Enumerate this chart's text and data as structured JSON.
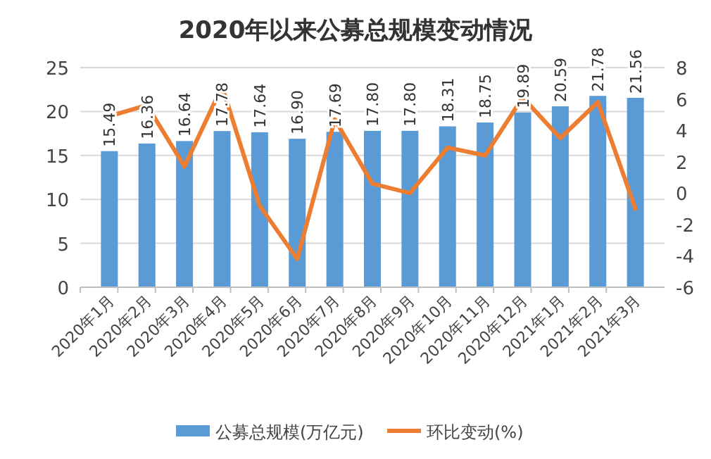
{
  "chart_data": {
    "type": "bar",
    "title": "2020年以来公募总规模变动情况",
    "categories": [
      "2020年1月",
      "2020年2月",
      "2020年3月",
      "2020年4月",
      "2020年5月",
      "2020年6月",
      "2020年7月",
      "2020年8月",
      "2020年9月",
      "2020年10月",
      "2020年11月",
      "2020年12月",
      "2021年1月",
      "2021年2月",
      "2021年3月"
    ],
    "series": [
      {
        "name": "公募总规模(万亿元)",
        "color": "#5b9bd5",
        "values": [
          15.49,
          16.36,
          16.64,
          17.78,
          17.64,
          16.9,
          17.69,
          17.8,
          17.8,
          18.31,
          18.75,
          19.89,
          20.59,
          21.78,
          21.56
        ],
        "value_labels": [
          "15.49",
          "16.36",
          "16.64",
          "17.78",
          "17.64",
          "16.90",
          "17.69",
          "17.80",
          "17.80",
          "18.31",
          "18.75",
          "19.89",
          "20.59",
          "21.78",
          "21.56"
        ]
      },
      {
        "name": "环比变动(%)",
        "color": "#ed7d31",
        "type": "line",
        "axis": "y2",
        "values": [
          4.9,
          5.6,
          1.7,
          6.8,
          -0.8,
          -4.2,
          4.7,
          0.6,
          0.0,
          2.9,
          2.4,
          6.1,
          3.5,
          5.8,
          -1.0
        ]
      }
    ],
    "ylim": [
      0,
      25
    ],
    "yticks": [
      0,
      5,
      10,
      15,
      20,
      25
    ],
    "y2lim": [
      -6,
      8
    ],
    "y2ticks": [
      -6,
      -4,
      -2,
      0,
      2,
      4,
      6,
      8
    ],
    "grid": "y",
    "legend": "bottom"
  }
}
